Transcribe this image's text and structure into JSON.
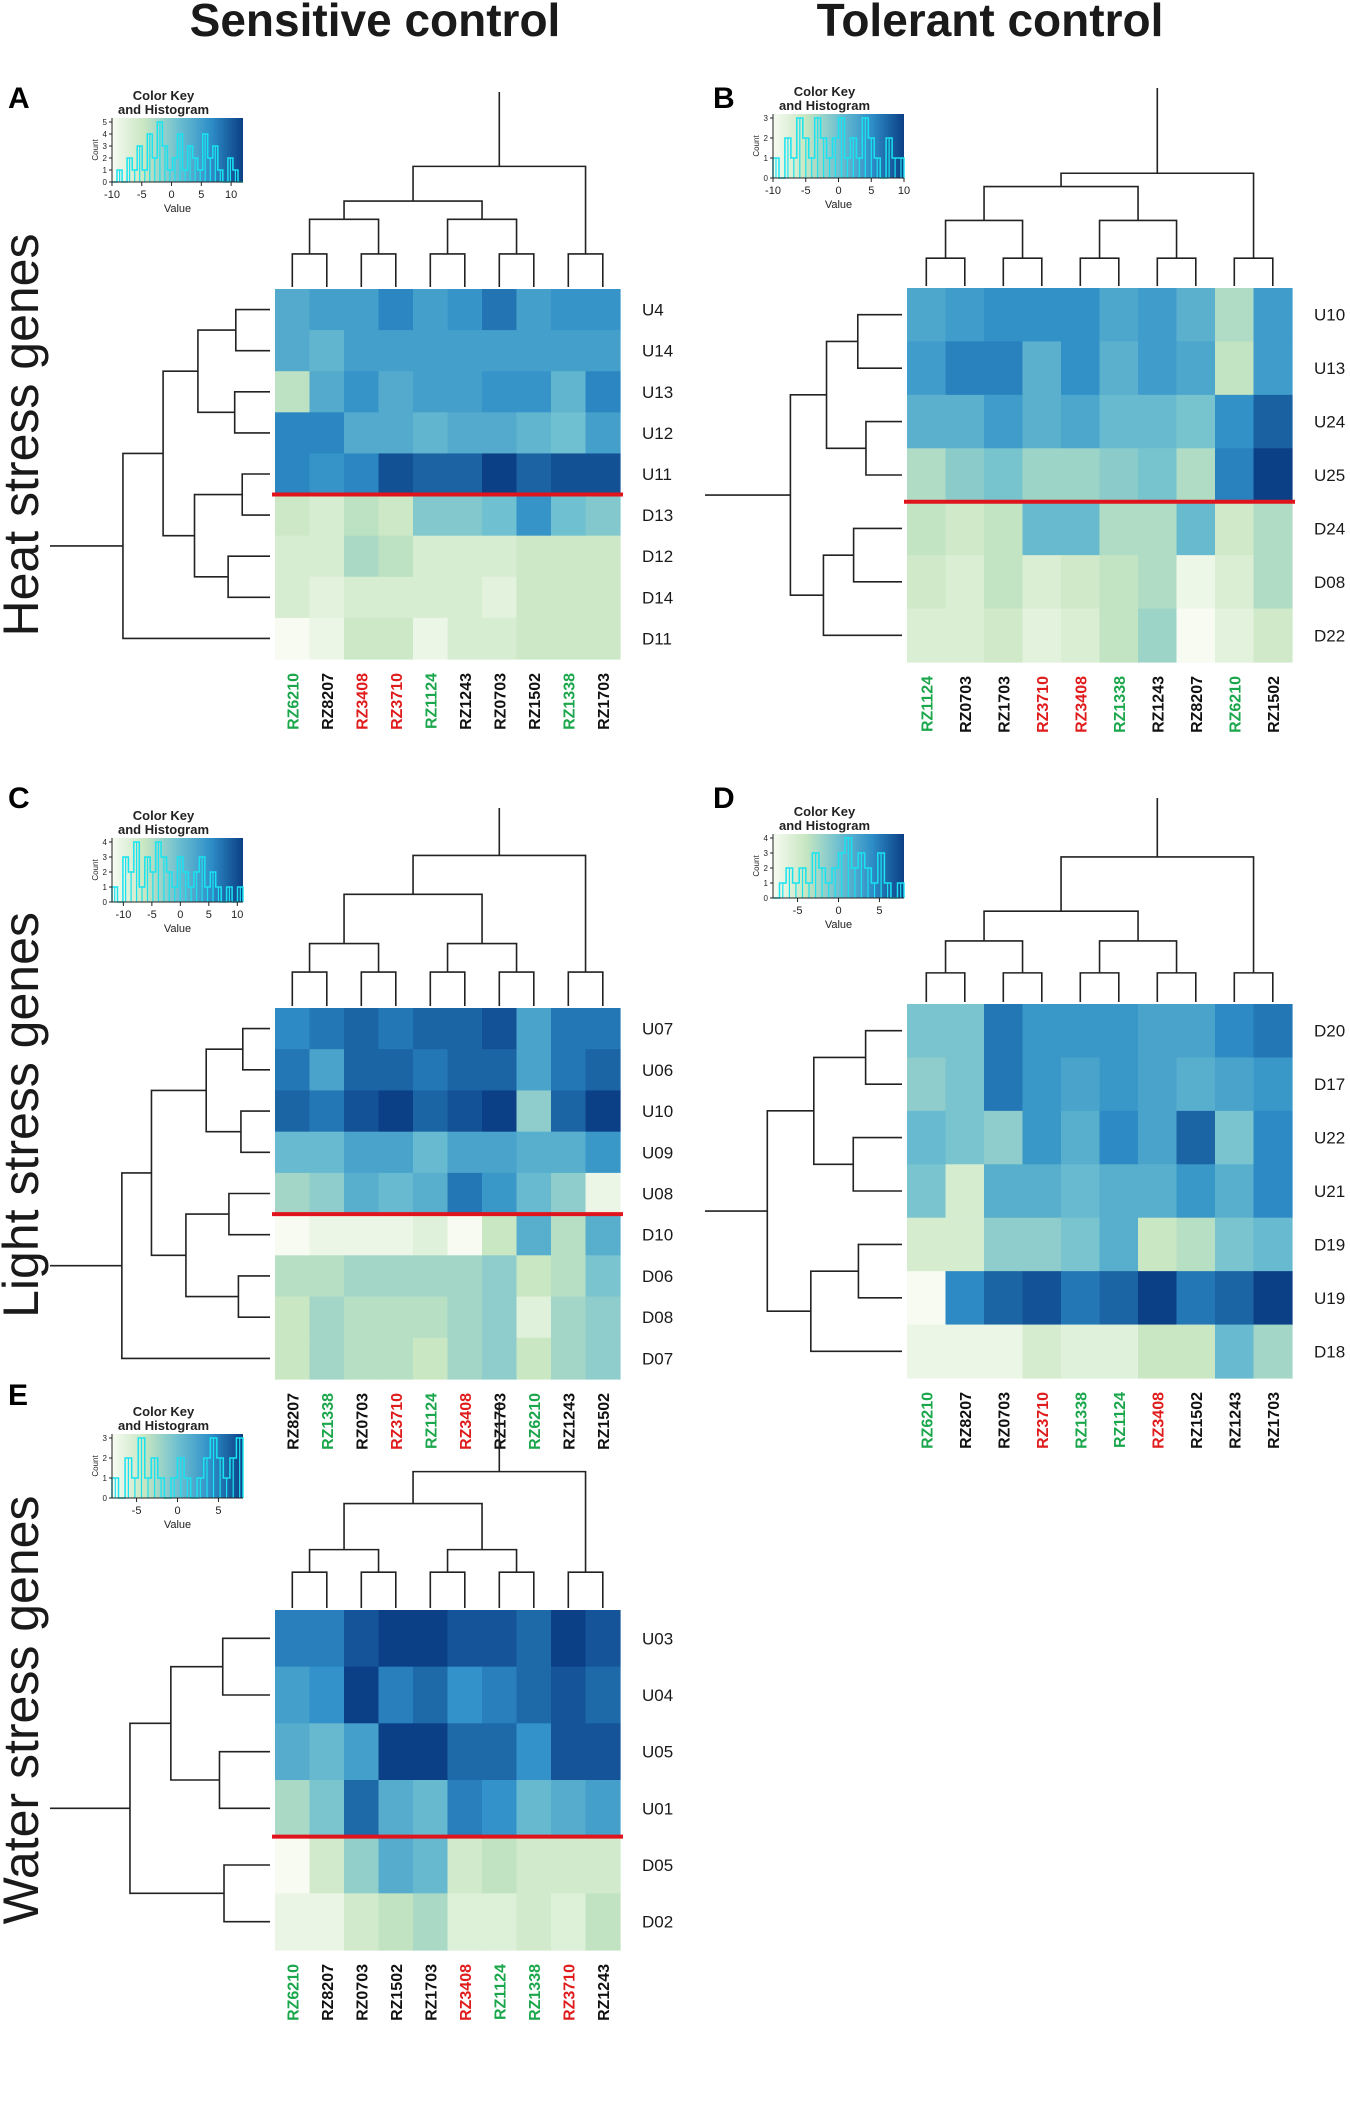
{
  "headers": {
    "left": "Sensitive control",
    "right": "Tolerant control"
  },
  "row_titles": {
    "heat": "Heat stress genes",
    "light": "Light stress genes",
    "water": "Water stress genes"
  },
  "color_key": {
    "title_line1": "Color Key",
    "title_line2": "and Histogram",
    "xlabel": "Value",
    "ylabel": "Count"
  },
  "colors": {
    "sensitive": "#e01b1b",
    "tolerant": "#1aa64a",
    "neutral": "#111111",
    "divider": "#e0141c",
    "scale": [
      "#f7fbf2",
      "#c7e6c1",
      "#6fc0d0",
      "#2f8fc8",
      "#0b3f86"
    ]
  },
  "chart_data": [
    {
      "panel": "A",
      "type": "heatmap",
      "columns": [
        "RZ6210",
        "RZ8207",
        "RZ3408",
        "RZ3710",
        "RZ1124",
        "RZ1243",
        "RZ0703",
        "RZ1502",
        "RZ1338",
        "RZ1703"
      ],
      "column_groups": [
        "tolerant",
        "neutral",
        "sensitive",
        "sensitive",
        "tolerant",
        "neutral",
        "neutral",
        "neutral",
        "tolerant",
        "neutral"
      ],
      "rows": [
        "U4",
        "U14",
        "U13",
        "U12",
        "U11",
        "D13",
        "D12",
        "D14",
        "D11"
      ],
      "divider_after_row": 5,
      "values": [
        [
          3,
          4,
          4,
          6,
          4,
          5,
          7,
          4,
          5,
          5
        ],
        [
          3,
          2,
          4,
          4,
          4,
          4,
          4,
          4,
          4,
          4
        ],
        [
          -3,
          3,
          5,
          3,
          4,
          4,
          5,
          5,
          2,
          6
        ],
        [
          6,
          6,
          3,
          3,
          2,
          3,
          3,
          2,
          1,
          4
        ],
        [
          6,
          5,
          6,
          9,
          8,
          8,
          10,
          8,
          9,
          9
        ],
        [
          -4,
          -5,
          -3,
          -4,
          0,
          0,
          1,
          5,
          1,
          0
        ],
        [
          -5,
          -5,
          -2,
          -3,
          -5,
          -5,
          -5,
          -4,
          -4,
          -4
        ],
        [
          -5,
          -6,
          -5,
          -5,
          -5,
          -5,
          -6,
          -4,
          -4,
          -4
        ],
        [
          -8,
          -7,
          -4,
          -4,
          -7,
          -5,
          -5,
          -4,
          -4,
          -4
        ]
      ],
      "color_key": {
        "range": [
          -10,
          12
        ],
        "ticks": [
          -10,
          -5,
          0,
          5,
          10
        ],
        "count_ticks": [
          0,
          1,
          2,
          3,
          4,
          5
        ],
        "histogram": [
          0,
          1,
          0,
          2,
          1,
          3,
          1,
          4,
          2,
          5,
          3,
          1,
          2,
          4,
          1,
          3,
          2,
          1,
          4,
          2,
          3,
          1,
          0,
          2,
          1,
          0
        ]
      }
    },
    {
      "panel": "B",
      "type": "heatmap",
      "columns": [
        "RZ1124",
        "RZ0703",
        "RZ1703",
        "RZ3710",
        "RZ3408",
        "RZ1338",
        "RZ1243",
        "RZ8207",
        "RZ6210",
        "RZ1502"
      ],
      "column_groups": [
        "tolerant",
        "neutral",
        "neutral",
        "sensitive",
        "sensitive",
        "tolerant",
        "neutral",
        "neutral",
        "tolerant",
        "neutral"
      ],
      "rows": [
        "U10",
        "U13",
        "U24",
        "U25",
        "D24",
        "D08",
        "D22"
      ],
      "divider_after_row": 4,
      "values": [
        [
          3,
          4,
          5,
          5,
          5,
          3,
          4,
          2,
          -3,
          4
        ],
        [
          4,
          6,
          6,
          2,
          5,
          2,
          4,
          3,
          -4,
          4
        ],
        [
          2,
          2,
          4,
          2,
          3,
          1,
          1,
          0,
          5,
          8
        ],
        [
          -3,
          -1,
          0,
          -2,
          -2,
          -1,
          0,
          -3,
          6,
          10
        ],
        [
          -4,
          -5,
          -4,
          1,
          1,
          -3,
          -3,
          1,
          -5,
          -3
        ],
        [
          -5,
          -6,
          -4,
          -6,
          -5,
          -4,
          -3,
          -8,
          -6,
          -3
        ],
        [
          -6,
          -6,
          -5,
          -7,
          -6,
          -4,
          -2,
          -9,
          -7,
          -5
        ]
      ],
      "color_key": {
        "range": [
          -10,
          10
        ],
        "ticks": [
          -10,
          -5,
          0,
          5,
          10
        ],
        "count_ticks": [
          0,
          1,
          2,
          3
        ],
        "histogram": [
          1,
          0,
          2,
          1,
          3,
          2,
          1,
          3,
          2,
          1,
          2,
          3,
          1,
          2,
          1,
          3,
          2,
          1,
          0,
          2,
          1,
          1
        ]
      }
    },
    {
      "panel": "C",
      "type": "heatmap",
      "columns": [
        "RZ8207",
        "RZ1338",
        "RZ0703",
        "RZ3710",
        "RZ1124",
        "RZ3408",
        "RZ1703",
        "RZ6210",
        "RZ1243",
        "RZ1502"
      ],
      "column_groups": [
        "neutral",
        "tolerant",
        "neutral",
        "sensitive",
        "tolerant",
        "sensitive",
        "neutral",
        "tolerant",
        "neutral",
        "neutral"
      ],
      "rows": [
        "U07",
        "U06",
        "U10",
        "U09",
        "U08",
        "D10",
        "D06",
        "D08",
        "D07"
      ],
      "divider_after_row": 5,
      "values": [
        [
          4,
          5,
          6,
          5,
          6,
          6,
          7,
          2,
          5,
          5
        ],
        [
          5,
          2,
          6,
          6,
          5,
          6,
          6,
          2,
          5,
          6
        ],
        [
          6,
          5,
          7,
          8,
          6,
          7,
          8,
          -2,
          6,
          8
        ],
        [
          0,
          0,
          2,
          2,
          0,
          2,
          2,
          1,
          1,
          3
        ],
        [
          -3,
          -2,
          1,
          0,
          1,
          5,
          3,
          0,
          -2,
          -8
        ],
        [
          -9,
          -8,
          -8,
          -8,
          -7,
          -9,
          -5,
          1,
          -4,
          1
        ],
        [
          -4,
          -4,
          -3,
          -3,
          -3,
          -3,
          -2,
          -5,
          -4,
          -1
        ],
        [
          -5,
          -3,
          -4,
          -4,
          -4,
          -3,
          -2,
          -7,
          -3,
          -2
        ],
        [
          -5,
          -3,
          -4,
          -4,
          -5,
          -3,
          -2,
          -5,
          -3,
          -2
        ]
      ],
      "color_key": {
        "range": [
          -12,
          11
        ],
        "ticks": [
          -10,
          -5,
          0,
          5,
          10
        ],
        "count_ticks": [
          0,
          1,
          2,
          3,
          4
        ],
        "histogram": [
          1,
          0,
          3,
          2,
          4,
          1,
          3,
          2,
          4,
          3,
          2,
          1,
          3,
          2,
          1,
          2,
          3,
          1,
          2,
          1,
          0,
          1,
          0,
          1
        ]
      }
    },
    {
      "panel": "D",
      "type": "heatmap",
      "columns": [
        "RZ6210",
        "RZ8207",
        "RZ0703",
        "RZ3710",
        "RZ1338",
        "RZ1124",
        "RZ3408",
        "RZ1502",
        "RZ1243",
        "RZ1703"
      ],
      "column_groups": [
        "tolerant",
        "neutral",
        "neutral",
        "sensitive",
        "tolerant",
        "tolerant",
        "sensitive",
        "neutral",
        "neutral",
        "neutral"
      ],
      "rows": [
        "D20",
        "D17",
        "U22",
        "U21",
        "D19",
        "U19",
        "D18"
      ],
      "divider_after_row": null,
      "values": [
        [
          1,
          1,
          7,
          5,
          5,
          5,
          4,
          4,
          6,
          7
        ],
        [
          0,
          1,
          7,
          5,
          4,
          5,
          4,
          3,
          4,
          5
        ],
        [
          2,
          1,
          0,
          5,
          3,
          6,
          4,
          8,
          1,
          6
        ],
        [
          1,
          -4,
          3,
          3,
          2,
          3,
          3,
          5,
          3,
          6
        ],
        [
          -4,
          -4,
          0,
          0,
          1,
          3,
          -3,
          -2,
          1,
          2
        ],
        [
          -7,
          6,
          8,
          9,
          7,
          8,
          10,
          7,
          8,
          10
        ],
        [
          -6,
          -6,
          -6,
          -4,
          -5,
          -5,
          -3,
          -3,
          2,
          -1
        ]
      ],
      "color_key": {
        "range": [
          -8,
          8
        ],
        "ticks": [
          -5,
          0,
          5
        ],
        "count_ticks": [
          0,
          1,
          2,
          3,
          4
        ],
        "histogram": [
          0,
          1,
          2,
          1,
          2,
          1,
          3,
          2,
          1,
          2,
          3,
          4,
          2,
          3,
          2,
          1,
          3,
          1,
          0,
          1
        ]
      }
    },
    {
      "panel": "E",
      "type": "heatmap",
      "columns": [
        "RZ6210",
        "RZ8207",
        "RZ0703",
        "RZ1502",
        "RZ1703",
        "RZ3408",
        "RZ1124",
        "RZ1338",
        "RZ3710",
        "RZ1243"
      ],
      "column_groups": [
        "tolerant",
        "neutral",
        "neutral",
        "neutral",
        "neutral",
        "sensitive",
        "tolerant",
        "tolerant",
        "sensitive",
        "neutral"
      ],
      "rows": [
        "U03",
        "U04",
        "U05",
        "U01",
        "D05",
        "D02"
      ],
      "divider_after_row": 4,
      "values": [
        [
          5,
          5,
          7,
          8,
          8,
          7,
          7,
          6,
          8,
          7
        ],
        [
          3,
          4,
          8,
          5,
          6,
          4,
          5,
          6,
          7,
          6
        ],
        [
          2,
          1,
          3,
          8,
          8,
          6,
          6,
          4,
          7,
          7
        ],
        [
          -2,
          0,
          6,
          2,
          1,
          5,
          4,
          1,
          2,
          3
        ],
        [
          -7,
          -4,
          -1,
          2,
          1,
          -4,
          -3,
          -4,
          -4,
          -4
        ],
        [
          -6,
          -6,
          -4,
          -3,
          -2,
          -5,
          -5,
          -4,
          -5,
          -3
        ]
      ],
      "color_key": {
        "range": [
          -8,
          8
        ],
        "ticks": [
          -5,
          0,
          5
        ],
        "count_ticks": [
          0,
          1,
          2,
          3
        ],
        "histogram": [
          1,
          0,
          2,
          1,
          3,
          1,
          2,
          1,
          0,
          1,
          2,
          1,
          0,
          1,
          2,
          3,
          2,
          1,
          2,
          3
        ]
      }
    }
  ]
}
